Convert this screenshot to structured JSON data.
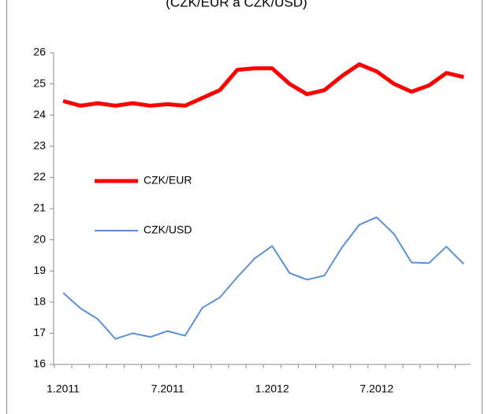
{
  "chart_data": {
    "type": "line",
    "title": "(CZK/EUR a CZK/USD)",
    "categories": [
      "1.2011",
      null,
      null,
      null,
      null,
      null,
      "7.2011",
      null,
      null,
      null,
      null,
      null,
      "1.2012",
      null,
      null,
      null,
      null,
      null,
      "7.2012",
      null,
      null,
      null,
      null,
      null
    ],
    "series": [
      {
        "name": "CZK/EUR",
        "color": "#ff0000",
        "values": [
          24.45,
          24.3,
          24.38,
          24.3,
          24.38,
          24.3,
          24.35,
          24.3,
          24.55,
          24.8,
          25.45,
          25.5,
          25.5,
          25.0,
          24.67,
          24.8,
          25.25,
          25.63,
          25.4,
          25.0,
          24.75,
          24.95,
          25.35,
          25.22
        ]
      },
      {
        "name": "CZK/USD",
        "color": "#5b8fd6",
        "values": [
          18.3,
          17.8,
          17.45,
          16.82,
          17.0,
          16.88,
          17.07,
          16.92,
          17.82,
          18.15,
          18.8,
          19.4,
          19.8,
          18.93,
          18.72,
          18.85,
          19.75,
          20.48,
          20.72,
          20.18,
          19.27,
          19.25,
          19.78,
          19.22
        ]
      }
    ],
    "ylim": [
      16,
      26
    ],
    "yticks": [
      16,
      17,
      18,
      19,
      20,
      21,
      22,
      23,
      24,
      25,
      26
    ]
  }
}
